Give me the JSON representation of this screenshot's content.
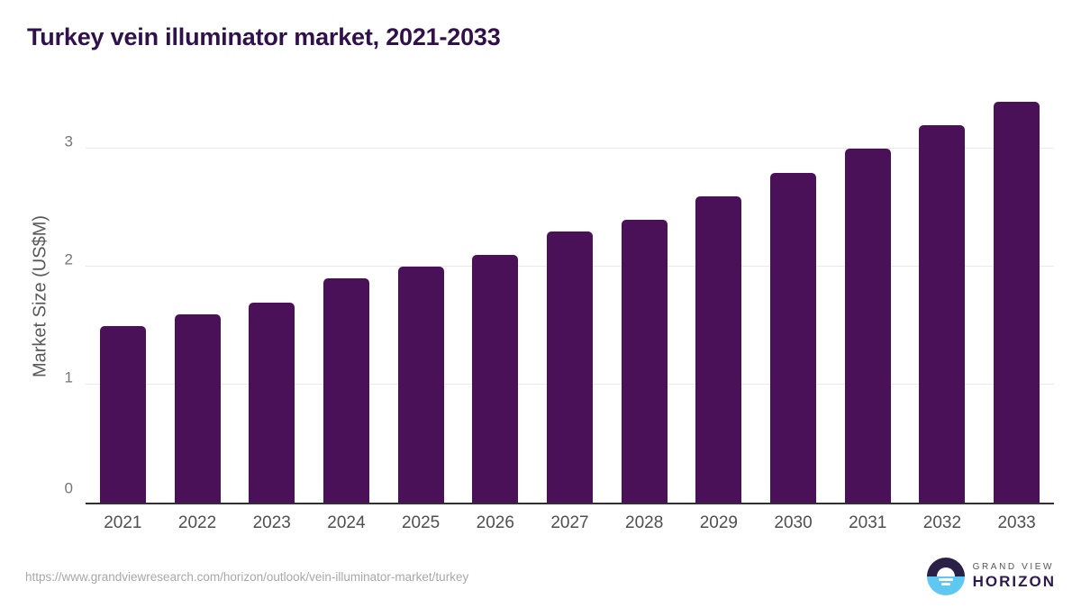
{
  "title": "Turkey vein illuminator market, 2021-2033",
  "chart_data": {
    "type": "bar",
    "title": "Turkey vein illuminator market, 2021-2033",
    "categories": [
      "2021",
      "2022",
      "2023",
      "2024",
      "2025",
      "2026",
      "2027",
      "2028",
      "2029",
      "2030",
      "2031",
      "2032",
      "2033"
    ],
    "values": [
      1.5,
      1.6,
      1.7,
      1.9,
      2.0,
      2.1,
      2.3,
      2.4,
      2.6,
      2.8,
      3.0,
      3.2,
      3.4
    ],
    "xlabel": "",
    "ylabel": "Market Size (US$M)",
    "ylim": [
      0,
      3.5
    ],
    "yticks": [
      0,
      1,
      2,
      3
    ],
    "grid": true,
    "legend": "none",
    "bar_color": "#4a1158",
    "gridline_color": "#e9e9ec",
    "axis_line_color": "#303034"
  },
  "footer": {
    "source_url": "https://www.grandviewresearch.com/horizon/outlook/vein-illuminator-market/turkey",
    "logo": {
      "line1": "GRAND VIEW",
      "line2": "HORIZON",
      "mark_top_color": "#2b2045",
      "mark_bottom_color": "#5ec8f2"
    }
  },
  "colors": {
    "title": "#31114c",
    "x_label": "#4f4f52",
    "y_tick": "#76767a",
    "y_axis_title": "#59595c",
    "source_url": "#a8a8aa"
  }
}
